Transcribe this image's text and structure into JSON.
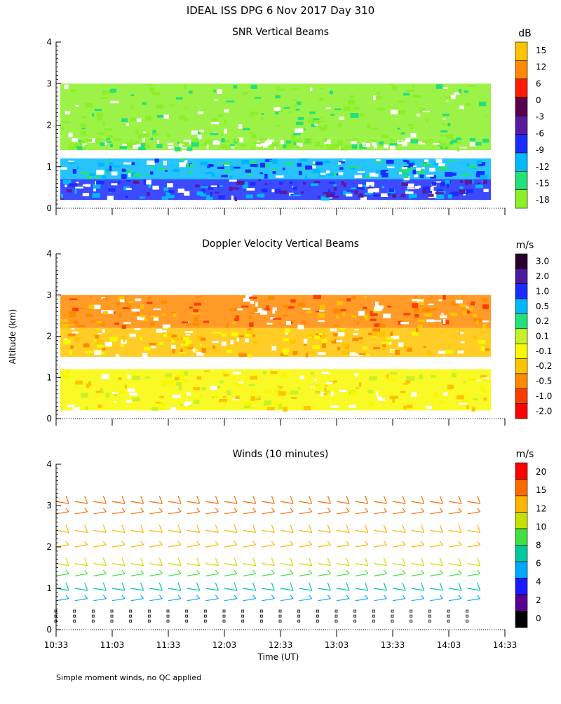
{
  "title": "IDEAL ISS DPG    6 Nov 2017 Day 310",
  "ylabel": "Altitude (km)",
  "xlabel": "Time (UT)",
  "footnote": "Simple moment winds, no QC applied",
  "x_ticks": [
    "10:33",
    "11:03",
    "11:33",
    "12:03",
    "12:33",
    "13:03",
    "13:33",
    "14:03",
    "14:33"
  ],
  "y_ticks": [
    "0",
    "1",
    "2",
    "3",
    "4"
  ],
  "chart_data": [
    {
      "type": "heatmap",
      "title": "SNR Vertical Beams",
      "unit": "dB",
      "xlim": [
        "10:33",
        "14:33"
      ],
      "ylim": [
        0,
        4
      ],
      "colorbar": {
        "labels": [
          "15",
          "12",
          "6",
          "0",
          "-3",
          "-6",
          "-9",
          "-12",
          "-15",
          "-18"
        ],
        "colors": [
          "#ffc400",
          "#ff8a00",
          "#ff1a00",
          "#5a004e",
          "#5a1aa0",
          "#1a2cff",
          "#00b8ff",
          "#22e07a",
          "#8cf028"
        ]
      },
      "layers": [
        {
          "name": "band-0.2-0.7",
          "alt": [
            0.2,
            0.7
          ],
          "value": -6
        },
        {
          "name": "band-0.7-1.2",
          "alt": [
            0.7,
            1.2
          ],
          "value": -9
        },
        {
          "name": "band-1.4-1.7",
          "alt": [
            1.4,
            1.7
          ],
          "value": -15
        },
        {
          "name": "band-1.7-3.0",
          "alt": [
            1.7,
            3.0
          ],
          "value": -18
        }
      ]
    },
    {
      "type": "heatmap",
      "title": "Doppler Velocity Vertical Beams",
      "unit": "m/s",
      "xlim": [
        "10:33",
        "14:33"
      ],
      "ylim": [
        0,
        4
      ],
      "colorbar": {
        "labels": [
          "3.0",
          "2.0",
          "1.0",
          "0.5",
          "0.2",
          "0.1",
          "-0.1",
          "-0.2",
          "-0.5",
          "-1.0",
          "-2.0"
        ],
        "colors": [
          "#2a0030",
          "#4a1aa0",
          "#1a2cff",
          "#00b8ff",
          "#22e07a",
          "#c8f028",
          "#f8f800",
          "#ffc400",
          "#ff8a00",
          "#ff3c00",
          "#ff0000"
        ]
      },
      "layers": [
        {
          "name": "band-0.2-1.2",
          "alt": [
            0.2,
            1.2
          ],
          "value": -0.1
        },
        {
          "name": "band-1.5-2.2",
          "alt": [
            1.5,
            2.2
          ],
          "value": -0.2
        },
        {
          "name": "band-2.2-3.0",
          "alt": [
            2.2,
            3.0
          ],
          "value": -0.5
        }
      ]
    },
    {
      "type": "barbs",
      "title": "Winds (10 minutes)",
      "unit": "m/s",
      "xlim": [
        "10:33",
        "14:33"
      ],
      "ylim": [
        0,
        4
      ],
      "colorbar": {
        "labels": [
          "20",
          "15",
          "12",
          "10",
          "8",
          "6",
          "4",
          "2",
          "0"
        ],
        "colors": [
          "#ff0000",
          "#ff6a00",
          "#ffb400",
          "#c8e000",
          "#40e040",
          "#00c8a0",
          "#00a8ff",
          "#1a1aff",
          "#5a0090",
          "#000000"
        ]
      },
      "profile_times": [
        "10:33",
        "10:43",
        "10:53",
        "11:03",
        "11:13",
        "11:23",
        "11:33",
        "11:43",
        "11:53",
        "12:03",
        "12:13",
        "12:23",
        "12:33",
        "12:43",
        "12:53",
        "13:03",
        "13:13",
        "13:23",
        "13:33",
        "13:43",
        "13:53",
        "14:03",
        "14:13"
      ],
      "speed_profile": [
        {
          "alt": 0.7,
          "speed": 3
        },
        {
          "alt": 1.0,
          "speed": 5
        },
        {
          "alt": 1.3,
          "speed": 7
        },
        {
          "alt": 1.6,
          "speed": 9
        },
        {
          "alt": 2.0,
          "speed": 11
        },
        {
          "alt": 2.4,
          "speed": 12.5
        },
        {
          "alt": 2.8,
          "speed": 14
        },
        {
          "alt": 3.1,
          "speed": 16
        }
      ]
    }
  ]
}
